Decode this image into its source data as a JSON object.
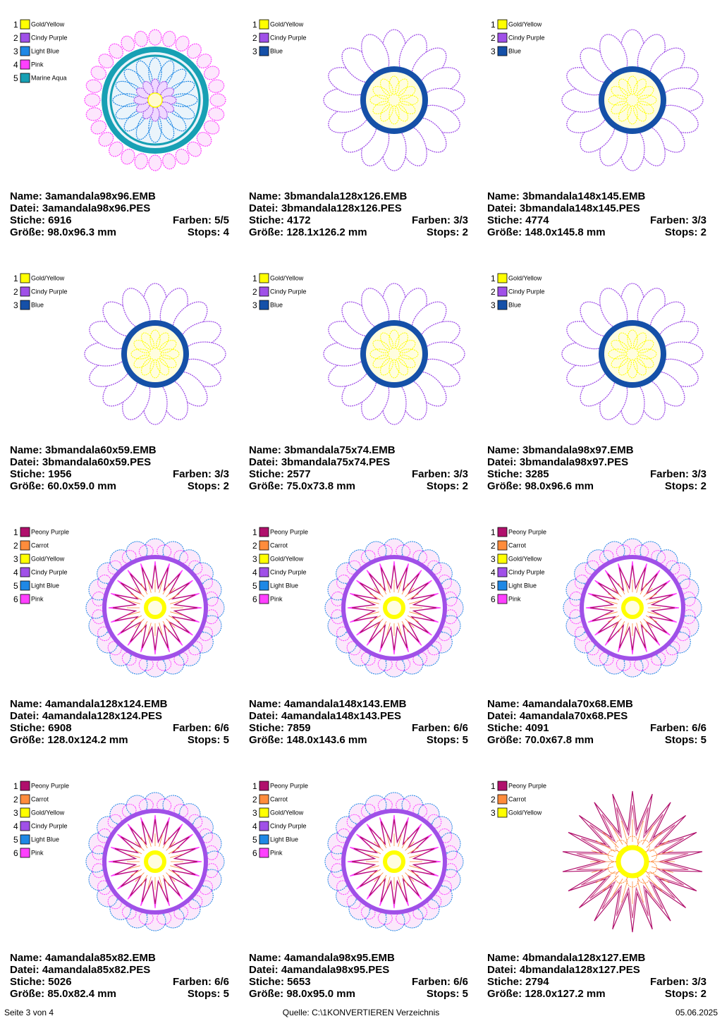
{
  "designs": [
    {
      "threads": [
        {
          "number": 1,
          "name": "Gold/Yellow",
          "color": "#ffff00"
        },
        {
          "number": 2,
          "name": "Cindy Purple",
          "color": "#a050e8"
        },
        {
          "number": 3,
          "name": "Light Blue",
          "color": "#1e88e5"
        },
        {
          "number": 4,
          "name": "Pink",
          "color": "#ff40ff"
        },
        {
          "number": 5,
          "name": "Marine Aqua",
          "color": "#17a0b4"
        }
      ],
      "name": "Name: 3amandala98x96.EMB",
      "file": "Datei: 3amandala98x96.PES",
      "stitches": "Stiche: 6916",
      "colors": "Farben: 5/5",
      "size": "Größe: 98.0x96.3 mm",
      "stops": "Stops: 4"
    },
    {
      "threads": [
        {
          "number": 1,
          "name": "Gold/Yellow",
          "color": "#ffff00"
        },
        {
          "number": 2,
          "name": "Cindy Purple",
          "color": "#a050e8"
        },
        {
          "number": 3,
          "name": "Blue",
          "color": "#1550a8"
        }
      ],
      "name": "Name: 3bmandala128x126.EMB",
      "file": "Datei: 3bmandala128x126.PES",
      "stitches": "Stiche: 4172",
      "colors": "Farben: 3/3",
      "size": "Größe: 128.1x126.2 mm",
      "stops": "Stops: 2"
    },
    {
      "threads": [
        {
          "number": 1,
          "name": "Gold/Yellow",
          "color": "#ffff00"
        },
        {
          "number": 2,
          "name": "Cindy Purple",
          "color": "#a050e8"
        },
        {
          "number": 3,
          "name": "Blue",
          "color": "#1550a8"
        }
      ],
      "name": "Name: 3bmandala148x145.EMB",
      "file": "Datei: 3bmandala148x145.PES",
      "stitches": "Stiche: 4774",
      "colors": "Farben: 3/3",
      "size": "Größe: 148.0x145.8 mm",
      "stops": "Stops: 2"
    },
    {
      "threads": [
        {
          "number": 1,
          "name": "Gold/Yellow",
          "color": "#ffff00"
        },
        {
          "number": 2,
          "name": "Cindy Purple",
          "color": "#a050e8"
        },
        {
          "number": 3,
          "name": "Blue",
          "color": "#1550a8"
        }
      ],
      "name": "Name: 3bmandala60x59.EMB",
      "file": "Datei: 3bmandala60x59.PES",
      "stitches": "Stiche: 1956",
      "colors": "Farben: 3/3",
      "size": "Größe: 60.0x59.0 mm",
      "stops": "Stops: 2"
    },
    {
      "threads": [
        {
          "number": 1,
          "name": "Gold/Yellow",
          "color": "#ffff00"
        },
        {
          "number": 2,
          "name": "Cindy Purple",
          "color": "#a050e8"
        },
        {
          "number": 3,
          "name": "Blue",
          "color": "#1550a8"
        }
      ],
      "name": "Name: 3bmandala75x74.EMB",
      "file": "Datei: 3bmandala75x74.PES",
      "stitches": "Stiche: 2577",
      "colors": "Farben: 3/3",
      "size": "Größe: 75.0x73.8 mm",
      "stops": "Stops: 2"
    },
    {
      "threads": [
        {
          "number": 1,
          "name": "Gold/Yellow",
          "color": "#ffff00"
        },
        {
          "number": 2,
          "name": "Cindy Purple",
          "color": "#a050e8"
        },
        {
          "number": 3,
          "name": "Blue",
          "color": "#1550a8"
        }
      ],
      "name": "Name: 3bmandala98x97.EMB",
      "file": "Datei: 3bmandala98x97.PES",
      "stitches": "Stiche: 3285",
      "colors": "Farben: 3/3",
      "size": "Größe: 98.0x96.6 mm",
      "stops": "Stops: 2"
    },
    {
      "threads": [
        {
          "number": 1,
          "name": "Peony Purple",
          "color": "#b0106c"
        },
        {
          "number": 2,
          "name": "Carrot",
          "color": "#ff8c3c"
        },
        {
          "number": 3,
          "name": "Gold/Yellow",
          "color": "#ffff00"
        },
        {
          "number": 4,
          "name": "Cindy Purple",
          "color": "#a050e8"
        },
        {
          "number": 5,
          "name": "Light Blue",
          "color": "#1e88e5"
        },
        {
          "number": 6,
          "name": "Pink",
          "color": "#ff40ff"
        }
      ],
      "name": "Name: 4amandala128x124.EMB",
      "file": "Datei: 4amandala128x124.PES",
      "stitches": "Stiche: 6908",
      "colors": "Farben: 6/6",
      "size": "Größe: 128.0x124.2 mm",
      "stops": "Stops: 5"
    },
    {
      "threads": [
        {
          "number": 1,
          "name": "Peony Purple",
          "color": "#b0106c"
        },
        {
          "number": 2,
          "name": "Carrot",
          "color": "#ff8c3c"
        },
        {
          "number": 3,
          "name": "Gold/Yellow",
          "color": "#ffff00"
        },
        {
          "number": 4,
          "name": "Cindy Purple",
          "color": "#a050e8"
        },
        {
          "number": 5,
          "name": "Light Blue",
          "color": "#1e88e5"
        },
        {
          "number": 6,
          "name": "Pink",
          "color": "#ff40ff"
        }
      ],
      "name": "Name: 4amandala148x143.EMB",
      "file": "Datei: 4amandala148x143.PES",
      "stitches": "Stiche: 7859",
      "colors": "Farben: 6/6",
      "size": "Größe: 148.0x143.6 mm",
      "stops": "Stops: 5"
    },
    {
      "threads": [
        {
          "number": 1,
          "name": "Peony Purple",
          "color": "#b0106c"
        },
        {
          "number": 2,
          "name": "Carrot",
          "color": "#ff8c3c"
        },
        {
          "number": 3,
          "name": "Gold/Yellow",
          "color": "#ffff00"
        },
        {
          "number": 4,
          "name": "Cindy Purple",
          "color": "#a050e8"
        },
        {
          "number": 5,
          "name": "Light Blue",
          "color": "#1e88e5"
        },
        {
          "number": 6,
          "name": "Pink",
          "color": "#ff40ff"
        }
      ],
      "name": "Name: 4amandala70x68.EMB",
      "file": "Datei: 4amandala70x68.PES",
      "stitches": "Stiche: 4091",
      "colors": "Farben: 6/6",
      "size": "Größe: 70.0x67.8 mm",
      "stops": "Stops: 5"
    },
    {
      "threads": [
        {
          "number": 1,
          "name": "Peony Purple",
          "color": "#b0106c"
        },
        {
          "number": 2,
          "name": "Carrot",
          "color": "#ff8c3c"
        },
        {
          "number": 3,
          "name": "Gold/Yellow",
          "color": "#ffff00"
        },
        {
          "number": 4,
          "name": "Cindy Purple",
          "color": "#a050e8"
        },
        {
          "number": 5,
          "name": "Light Blue",
          "color": "#1e88e5"
        },
        {
          "number": 6,
          "name": "Pink",
          "color": "#ff40ff"
        }
      ],
      "name": "Name: 4amandala85x82.EMB",
      "file": "Datei: 4amandala85x82.PES",
      "stitches": "Stiche: 5026",
      "colors": "Farben: 6/6",
      "size": "Größe: 85.0x82.4 mm",
      "stops": "Stops: 5"
    },
    {
      "threads": [
        {
          "number": 1,
          "name": "Peony Purple",
          "color": "#b0106c"
        },
        {
          "number": 2,
          "name": "Carrot",
          "color": "#ff8c3c"
        },
        {
          "number": 3,
          "name": "Gold/Yellow",
          "color": "#ffff00"
        },
        {
          "number": 4,
          "name": "Cindy Purple",
          "color": "#a050e8"
        },
        {
          "number": 5,
          "name": "Light Blue",
          "color": "#1e88e5"
        },
        {
          "number": 6,
          "name": "Pink",
          "color": "#ff40ff"
        }
      ],
      "name": "Name: 4amandala98x95.EMB",
      "file": "Datei: 4amandala98x95.PES",
      "stitches": "Stiche: 5653",
      "colors": "Farben: 6/6",
      "size": "Größe: 98.0x95.0 mm",
      "stops": "Stops: 5"
    },
    {
      "threads": [
        {
          "number": 1,
          "name": "Peony Purple",
          "color": "#b0106c"
        },
        {
          "number": 2,
          "name": "Carrot",
          "color": "#ff8c3c"
        },
        {
          "number": 3,
          "name": "Gold/Yellow",
          "color": "#ffff00"
        }
      ],
      "name": "Name: 4bmandala128x127.EMB",
      "file": "Datei: 4bmandala128x127.PES",
      "stitches": "Stiche: 2794",
      "colors": "Farben: 3/3",
      "size": "Größe: 128.0x127.2 mm",
      "stops": "Stops: 2"
    }
  ],
  "footer": {
    "page": "Seite 3 von 4",
    "source": "Quelle: C:\\1KONVERTIEREN Verzeichnis",
    "date": "05.06.2025"
  }
}
